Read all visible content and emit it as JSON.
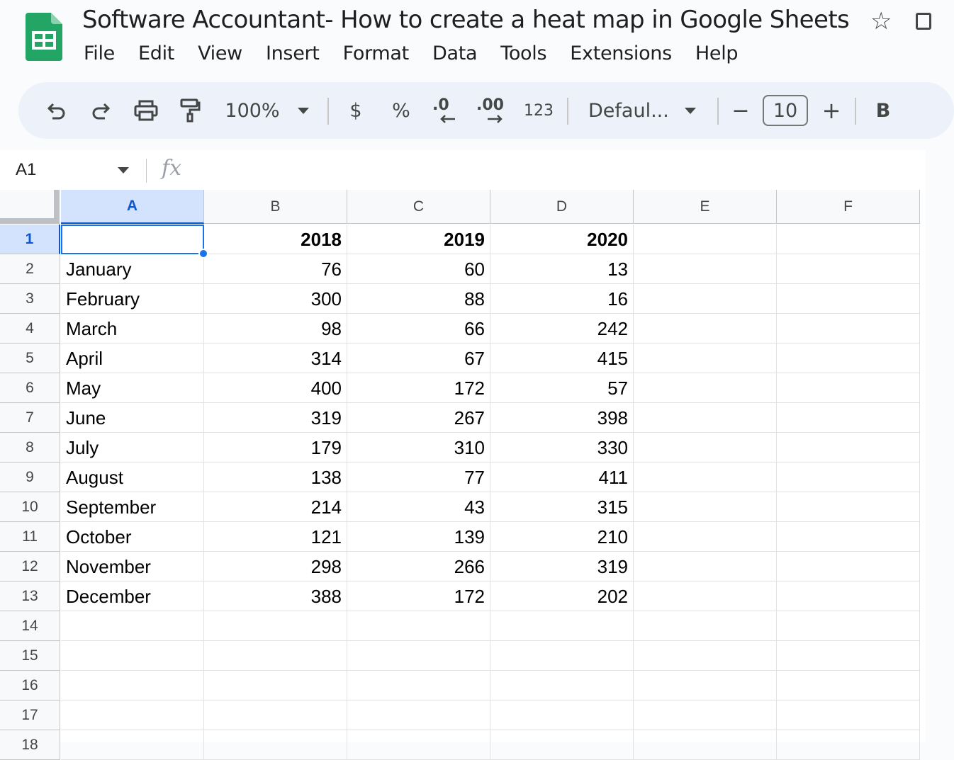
{
  "document": {
    "title": "Software Accountant- How to create a heat map in Google Sheets"
  },
  "icons": {
    "app_logo": "google-sheets-logo",
    "star": "star-icon",
    "move": "move-to-folder-icon"
  },
  "glyphs": {
    "star": "☆"
  },
  "menu": [
    "File",
    "Edit",
    "View",
    "Insert",
    "Format",
    "Data",
    "Tools",
    "Extensions",
    "Help"
  ],
  "toolbar": {
    "zoom": "100%",
    "currency": "$",
    "percent": "%",
    "decrease_decimals": ".0",
    "increase_decimals": ".00",
    "more_formats": "123",
    "font": "Defaul...",
    "font_size_minus": "−",
    "font_size": "10",
    "font_size_plus": "+",
    "bold": "B"
  },
  "formula_bar": {
    "cell_ref": "A1",
    "fx": "fx",
    "content": ""
  },
  "sheet": {
    "columns": [
      "A",
      "B",
      "C",
      "D",
      "E",
      "F"
    ],
    "selected_column": "A",
    "selected_row": "1",
    "selected_cell": "A1",
    "rows": [
      {
        "num": "1",
        "cells": [
          "",
          "2018",
          "2019",
          "2020",
          "",
          ""
        ]
      },
      {
        "num": "2",
        "cells": [
          "January",
          "76",
          "60",
          "13",
          "",
          ""
        ]
      },
      {
        "num": "3",
        "cells": [
          "February",
          "300",
          "88",
          "16",
          "",
          ""
        ]
      },
      {
        "num": "4",
        "cells": [
          "March",
          "98",
          "66",
          "242",
          "",
          ""
        ]
      },
      {
        "num": "5",
        "cells": [
          "April",
          "314",
          "67",
          "415",
          "",
          ""
        ]
      },
      {
        "num": "6",
        "cells": [
          "May",
          "400",
          "172",
          "57",
          "",
          ""
        ]
      },
      {
        "num": "7",
        "cells": [
          "June",
          "319",
          "267",
          "398",
          "",
          ""
        ]
      },
      {
        "num": "8",
        "cells": [
          "July",
          "179",
          "310",
          "330",
          "",
          ""
        ]
      },
      {
        "num": "9",
        "cells": [
          "August",
          "138",
          "77",
          "411",
          "",
          ""
        ]
      },
      {
        "num": "10",
        "cells": [
          "September",
          "214",
          "43",
          "315",
          "",
          ""
        ]
      },
      {
        "num": "11",
        "cells": [
          "October",
          "121",
          "139",
          "210",
          "",
          ""
        ]
      },
      {
        "num": "12",
        "cells": [
          "November",
          "298",
          "266",
          "319",
          "",
          ""
        ]
      },
      {
        "num": "13",
        "cells": [
          "December",
          "388",
          "172",
          "202",
          "",
          ""
        ]
      },
      {
        "num": "14",
        "cells": [
          "",
          "",
          "",
          "",
          "",
          ""
        ]
      },
      {
        "num": "15",
        "cells": [
          "",
          "",
          "",
          "",
          "",
          ""
        ]
      },
      {
        "num": "16",
        "cells": [
          "",
          "",
          "",
          "",
          "",
          ""
        ]
      },
      {
        "num": "17",
        "cells": [
          "",
          "",
          "",
          "",
          "",
          ""
        ]
      },
      {
        "num": "18",
        "cells": [
          "",
          "",
          "",
          "",
          "",
          ""
        ]
      }
    ]
  },
  "colors": {
    "accent": "#1a73e8",
    "logo_green": "#23a566",
    "selection_header": "#d3e3fd",
    "toolbar_bg": "#edf2fa"
  }
}
